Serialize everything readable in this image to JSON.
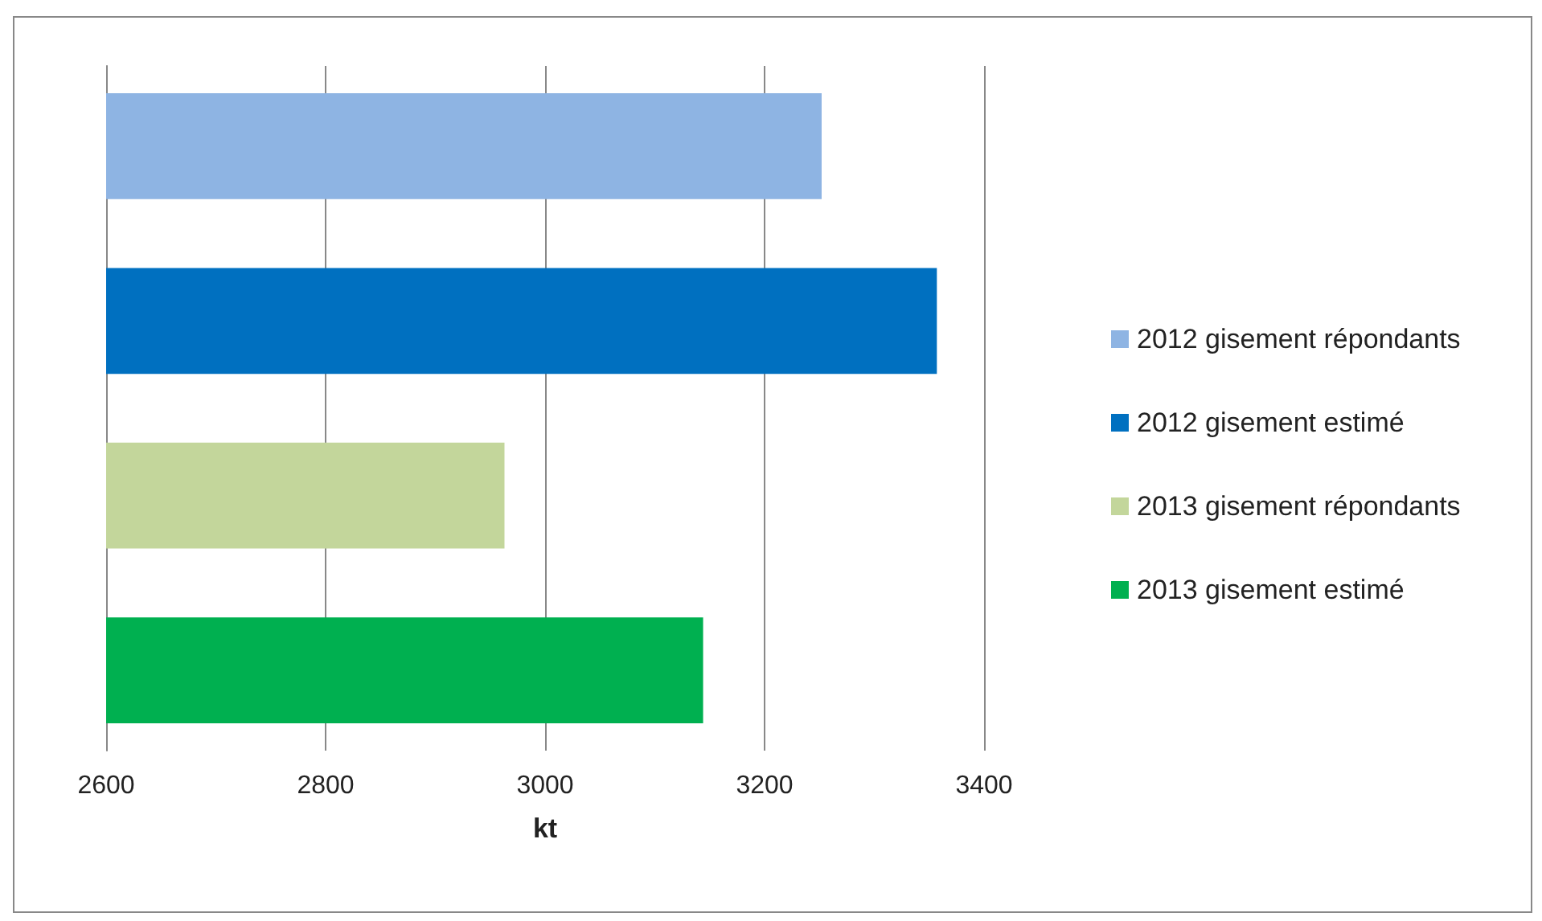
{
  "chart_data": {
    "type": "bar",
    "orientation": "horizontal",
    "categories": [
      null
    ],
    "xlabel": "kt",
    "xlim": [
      2600,
      3400
    ],
    "xticks": [
      2600,
      2800,
      3000,
      3200,
      3400
    ],
    "grid": "x",
    "legend": "right",
    "series": [
      {
        "name": "2012 gisement répondants",
        "color": "#8eb4e3",
        "values": [
          3252
        ]
      },
      {
        "name": "2012 gisement estimé",
        "color": "#0070c0",
        "values": [
          3357
        ]
      },
      {
        "name": "2013 gisement répondants",
        "color": "#c3d69b",
        "values": [
          2963
        ]
      },
      {
        "name": "2013 gisement estimé",
        "color": "#00b050",
        "values": [
          3144
        ]
      }
    ]
  }
}
